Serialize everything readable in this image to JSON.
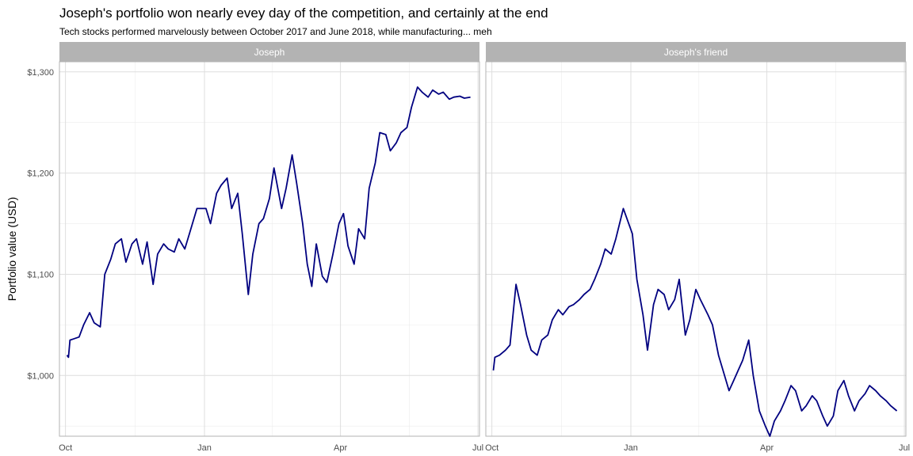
{
  "chart_data": {
    "type": "line",
    "title": "Joseph's portfolio won nearly evey day of the competition, and certainly at the end",
    "subtitle": "Tech stocks performed marvelously between October 2017 and June 2018, while manufacturing... meh",
    "ylabel": "Portfolio value (USD)",
    "xlabel": "",
    "ylim": [
      940,
      1310
    ],
    "xlim": [
      "2017-09-27",
      "2018-07-02"
    ],
    "y_ticks": [
      1000,
      1100,
      1200,
      1300
    ],
    "y_tick_labels": [
      "$1,000",
      "$1,100",
      "$1,200",
      "$1,300"
    ],
    "x_ticks": [
      "2017-10-01",
      "2018-01-01",
      "2018-04-01",
      "2018-07-01"
    ],
    "x_tick_labels": [
      "Oct",
      "Jan",
      "Apr",
      "Jul"
    ],
    "grid": true,
    "line_color": "#000080",
    "strip_color": "#b3b3b3",
    "panels": [
      {
        "strip": "Joseph",
        "x": [
          "2017-10-02",
          "2017-10-03",
          "2017-10-04",
          "2017-10-06",
          "2017-10-10",
          "2017-10-13",
          "2017-10-17",
          "2017-10-20",
          "2017-10-24",
          "2017-10-27",
          "2017-10-31",
          "2017-11-03",
          "2017-11-07",
          "2017-11-10",
          "2017-11-14",
          "2017-11-17",
          "2017-11-21",
          "2017-11-24",
          "2017-11-28",
          "2017-12-01",
          "2017-12-05",
          "2017-12-08",
          "2017-12-12",
          "2017-12-15",
          "2017-12-19",
          "2017-12-22",
          "2017-12-27",
          "2018-01-02",
          "2018-01-05",
          "2018-01-09",
          "2018-01-12",
          "2018-01-16",
          "2018-01-19",
          "2018-01-23",
          "2018-01-26",
          "2018-01-30",
          "2018-02-02",
          "2018-02-06",
          "2018-02-09",
          "2018-02-13",
          "2018-02-16",
          "2018-02-21",
          "2018-02-24",
          "2018-02-28",
          "2018-03-03",
          "2018-03-07",
          "2018-03-10",
          "2018-03-13",
          "2018-03-16",
          "2018-03-20",
          "2018-03-23",
          "2018-03-27",
          "2018-03-31",
          "2018-04-03",
          "2018-04-06",
          "2018-04-10",
          "2018-04-13",
          "2018-04-17",
          "2018-04-20",
          "2018-04-24",
          "2018-04-27",
          "2018-05-01",
          "2018-05-04",
          "2018-05-08",
          "2018-05-11",
          "2018-05-15",
          "2018-05-18",
          "2018-05-22",
          "2018-05-25",
          "2018-05-29",
          "2018-06-01",
          "2018-06-05",
          "2018-06-08",
          "2018-06-12",
          "2018-06-15",
          "2018-06-19",
          "2018-06-22",
          "2018-06-26"
        ],
        "y": [
          1020,
          1018,
          1035,
          1036,
          1038,
          1050,
          1062,
          1052,
          1048,
          1100,
          1115,
          1130,
          1135,
          1112,
          1130,
          1135,
          1110,
          1132,
          1090,
          1120,
          1130,
          1125,
          1122,
          1135,
          1125,
          1140,
          1165,
          1165,
          1150,
          1180,
          1188,
          1195,
          1165,
          1180,
          1140,
          1080,
          1120,
          1150,
          1155,
          1175,
          1205,
          1165,
          1185,
          1218,
          1190,
          1150,
          1110,
          1088,
          1130,
          1098,
          1092,
          1120,
          1150,
          1160,
          1128,
          1110,
          1145,
          1135,
          1185,
          1210,
          1240,
          1238,
          1222,
          1230,
          1240,
          1245,
          1265,
          1285,
          1280,
          1275,
          1282,
          1278,
          1280,
          1273,
          1275,
          1276,
          1274,
          1275
        ]
      },
      {
        "strip": "Joseph's friend",
        "x": [
          "2017-10-02",
          "2017-10-03",
          "2017-10-06",
          "2017-10-10",
          "2017-10-13",
          "2017-10-17",
          "2017-10-20",
          "2017-10-24",
          "2017-10-27",
          "2017-10-31",
          "2017-11-03",
          "2017-11-07",
          "2017-11-10",
          "2017-11-14",
          "2017-11-17",
          "2017-11-21",
          "2017-11-24",
          "2017-11-28",
          "2017-12-01",
          "2017-12-05",
          "2017-12-08",
          "2017-12-12",
          "2017-12-15",
          "2017-12-19",
          "2017-12-22",
          "2017-12-27",
          "2018-01-02",
          "2018-01-05",
          "2018-01-09",
          "2018-01-12",
          "2018-01-16",
          "2018-01-19",
          "2018-01-23",
          "2018-01-26",
          "2018-01-30",
          "2018-02-02",
          "2018-02-06",
          "2018-02-09",
          "2018-02-13",
          "2018-02-16",
          "2018-02-21",
          "2018-02-24",
          "2018-02-28",
          "2018-03-03",
          "2018-03-07",
          "2018-03-10",
          "2018-03-13",
          "2018-03-16",
          "2018-03-20",
          "2018-03-23",
          "2018-03-27",
          "2018-03-31",
          "2018-04-03",
          "2018-04-06",
          "2018-04-10",
          "2018-04-13",
          "2018-04-17",
          "2018-04-20",
          "2018-04-24",
          "2018-04-27",
          "2018-05-01",
          "2018-05-04",
          "2018-05-08",
          "2018-05-11",
          "2018-05-15",
          "2018-05-18",
          "2018-05-22",
          "2018-05-25",
          "2018-05-29",
          "2018-06-01",
          "2018-06-05",
          "2018-06-08",
          "2018-06-12",
          "2018-06-15",
          "2018-06-19",
          "2018-06-22",
          "2018-06-26"
        ],
        "y": [
          1005,
          1018,
          1020,
          1025,
          1030,
          1090,
          1070,
          1040,
          1025,
          1020,
          1035,
          1040,
          1055,
          1065,
          1060,
          1068,
          1070,
          1075,
          1080,
          1085,
          1095,
          1110,
          1125,
          1120,
          1135,
          1165,
          1140,
          1095,
          1060,
          1025,
          1070,
          1085,
          1080,
          1065,
          1075,
          1095,
          1040,
          1055,
          1085,
          1075,
          1060,
          1050,
          1020,
          1005,
          985,
          995,
          1005,
          1015,
          1035,
          1000,
          965,
          950,
          940,
          955,
          965,
          975,
          990,
          985,
          965,
          970,
          980,
          975,
          960,
          950,
          960,
          985,
          995,
          980,
          965,
          975,
          982,
          990,
          985,
          980,
          975,
          970,
          965
        ]
      }
    ]
  }
}
